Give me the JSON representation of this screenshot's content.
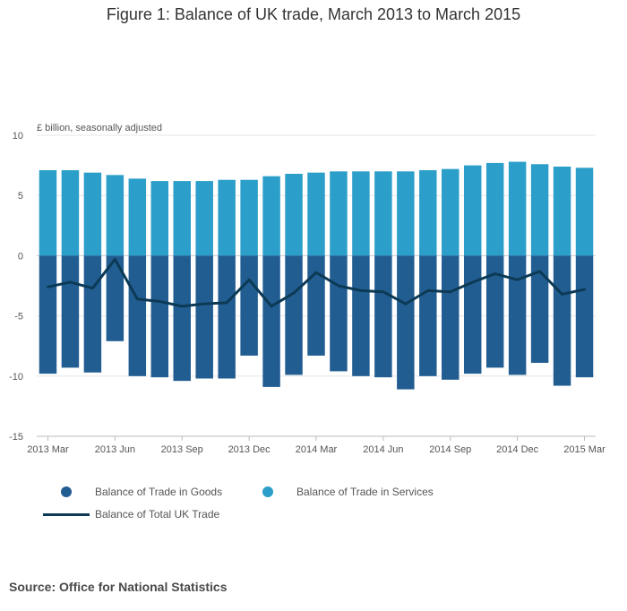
{
  "chart_data": {
    "type": "bar",
    "title": "Figure 1: Balance of UK trade, March 2013 to March 2015",
    "ylabel": "£ billion, seasonally adjusted",
    "xlabel": "",
    "ylim": [
      -15,
      10
    ],
    "yticks": [
      10,
      5,
      0,
      -5,
      -10,
      -15
    ],
    "months": [
      "2013 Mar",
      "2013 Apr",
      "2013 May",
      "2013 Jun",
      "2013 Jul",
      "2013 Aug",
      "2013 Sep",
      "2013 Oct",
      "2013 Nov",
      "2013 Dec",
      "2014 Jan",
      "2014 Feb",
      "2014 Mar",
      "2014 Apr",
      "2014 May",
      "2014 Jun",
      "2014 Jul",
      "2014 Aug",
      "2014 Sep",
      "2014 Oct",
      "2014 Nov",
      "2014 Dec",
      "2015 Jan",
      "2015 Feb",
      "2015 Mar"
    ],
    "xtick_labels": [
      {
        "index": 0,
        "label": "2013 Mar"
      },
      {
        "index": 3,
        "label": "2013 Jun"
      },
      {
        "index": 6,
        "label": "2013 Sep"
      },
      {
        "index": 9,
        "label": "2013 Dec"
      },
      {
        "index": 12,
        "label": "2014 Mar"
      },
      {
        "index": 15,
        "label": "2014 Jun"
      },
      {
        "index": 18,
        "label": "2014 Sep"
      },
      {
        "index": 21,
        "label": "2014 Dec"
      },
      {
        "index": 24,
        "label": "2015 Mar"
      }
    ],
    "series": [
      {
        "name": "Balance of Trade in Goods",
        "kind": "bar",
        "color": "#225d92",
        "values": [
          -9.8,
          -9.3,
          -9.7,
          -7.1,
          -10.0,
          -10.1,
          -10.4,
          -10.2,
          -10.2,
          -8.3,
          -10.9,
          -9.9,
          -8.3,
          -9.6,
          -10.0,
          -10.1,
          -11.1,
          -10.0,
          -10.3,
          -9.8,
          -9.3,
          -9.9,
          -8.9,
          -10.8,
          -10.1
        ]
      },
      {
        "name": "Balance of Trade in Services",
        "kind": "bar",
        "color": "#2b9ec9",
        "values": [
          7.1,
          7.1,
          6.9,
          6.7,
          6.4,
          6.2,
          6.2,
          6.2,
          6.3,
          6.3,
          6.6,
          6.8,
          6.9,
          7.0,
          7.0,
          7.0,
          7.0,
          7.1,
          7.2,
          7.5,
          7.7,
          7.8,
          7.6,
          7.4,
          7.3
        ]
      },
      {
        "name": "Balance of Total UK Trade",
        "kind": "line",
        "color": "#0c3a55",
        "values": [
          -2.6,
          -2.2,
          -2.7,
          -0.3,
          -3.6,
          -3.8,
          -4.2,
          -4.0,
          -3.9,
          -2.0,
          -4.2,
          -3.1,
          -1.4,
          -2.5,
          -2.9,
          -3.0,
          -4.0,
          -2.9,
          -3.0,
          -2.2,
          -1.5,
          -2.0,
          -1.3,
          -3.2,
          -2.8
        ]
      }
    ]
  },
  "source_text": "Source: Office for National Statistics"
}
